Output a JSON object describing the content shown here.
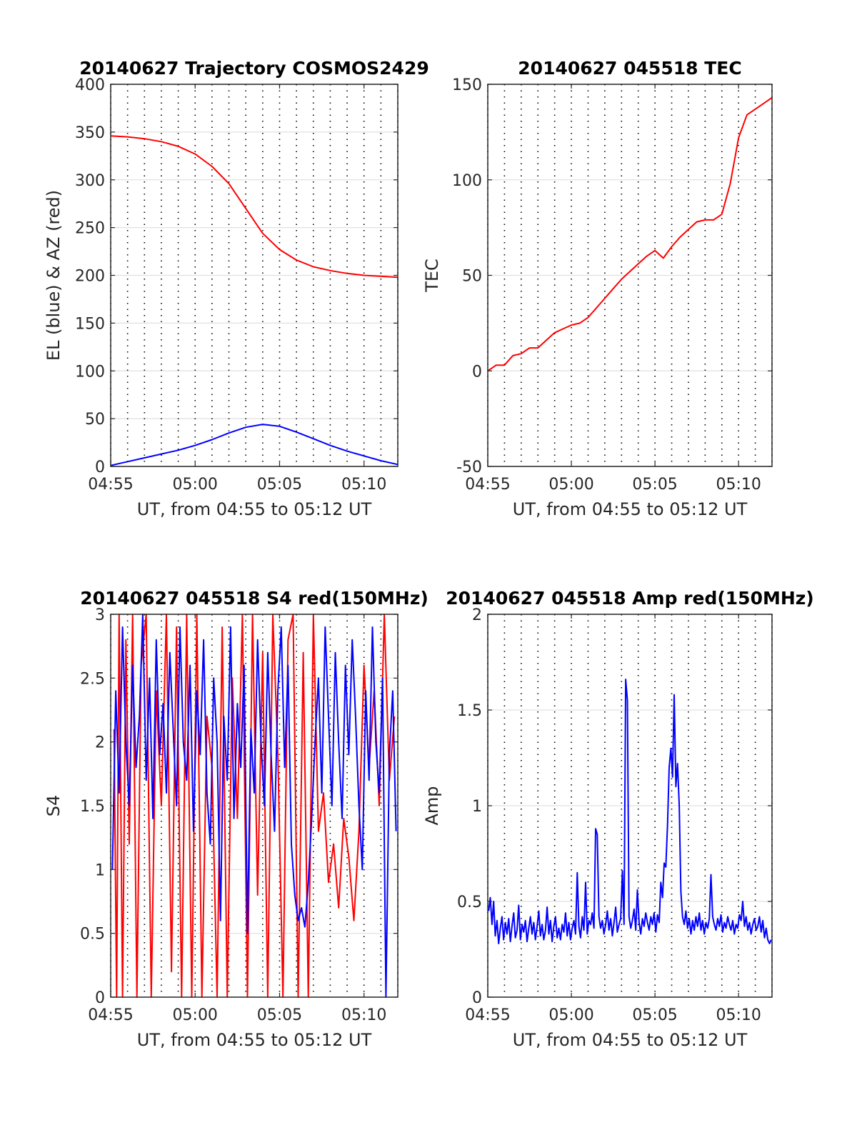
{
  "chart_data": [
    {
      "id": "trajectory",
      "type": "line",
      "title": "20140627 Trajectory COSMOS2429",
      "xlabel": "UT, from 04:55 to 05:12 UT",
      "ylabel": "EL (blue) & AZ (red)",
      "xlim": [
        0,
        17
      ],
      "ylim": [
        0,
        400
      ],
      "xticks": [
        0,
        5,
        10,
        15
      ],
      "xtick_labels": [
        "04:55",
        "05:00",
        "05:05",
        "05:10"
      ],
      "yticks": [
        0,
        50,
        100,
        150,
        200,
        250,
        300,
        350,
        400
      ],
      "grid": true,
      "series": [
        {
          "color": "#ff0000",
          "x": [
            0,
            1,
            2,
            3,
            4,
            5,
            6,
            7,
            8,
            9,
            10,
            11,
            12,
            13,
            14,
            15,
            16,
            17
          ],
          "values": [
            346,
            345,
            343,
            340,
            335,
            327,
            314,
            296,
            270,
            244,
            227,
            216,
            209,
            205,
            202,
            200,
            199,
            198
          ]
        },
        {
          "color": "#0000ff",
          "x": [
            0,
            1,
            2,
            3,
            4,
            5,
            6,
            7,
            8,
            9,
            10,
            11,
            12,
            13,
            14,
            15,
            16,
            17
          ],
          "values": [
            1,
            5,
            9,
            13,
            17,
            22,
            28,
            35,
            41,
            44,
            42,
            36,
            29,
            22,
            16,
            11,
            6,
            2
          ]
        }
      ]
    },
    {
      "id": "tec",
      "type": "line",
      "title": "20140627 045518 TEC",
      "xlabel": "UT, from 04:55 to 05:12 UT",
      "ylabel": "TEC",
      "xlim": [
        0,
        17
      ],
      "ylim": [
        -50,
        150
      ],
      "xticks": [
        0,
        5,
        10,
        15
      ],
      "xtick_labels": [
        "04:55",
        "05:00",
        "05:05",
        "05:10"
      ],
      "yticks": [
        -50,
        0,
        50,
        100,
        150
      ],
      "grid": true,
      "series": [
        {
          "color": "#ff0000",
          "x": [
            0,
            0.5,
            1,
            1.5,
            2,
            2.5,
            3,
            3.5,
            4,
            4.5,
            5,
            5.5,
            6,
            6.5,
            7,
            7.5,
            8,
            8.5,
            9,
            9.5,
            10,
            10.5,
            11,
            11.5,
            12,
            12.5,
            13,
            13.5,
            14,
            14.5,
            15,
            15.5,
            16,
            16.5,
            17
          ],
          "values": [
            0,
            3,
            3,
            8,
            9,
            12,
            12,
            16,
            20,
            22,
            24,
            25,
            28,
            33,
            38,
            43,
            48,
            52,
            56,
            60,
            63,
            59,
            65,
            70,
            74,
            78,
            79,
            79,
            82,
            98,
            122,
            134,
            137,
            140,
            143
          ]
        }
      ]
    },
    {
      "id": "s4",
      "type": "line",
      "title": "20140627 045518 S4 red(150MHz)",
      "xlabel": "UT, from 04:55 to 05:12 UT",
      "ylabel": "S4",
      "xlim": [
        0,
        17
      ],
      "ylim": [
        0,
        3
      ],
      "xticks": [
        0,
        5,
        10,
        15
      ],
      "xtick_labels": [
        "04:55",
        "05:00",
        "05:05",
        "05:10"
      ],
      "yticks": [
        0,
        0.5,
        1,
        1.5,
        2,
        2.5,
        3
      ],
      "grid": true,
      "series": [
        {
          "color": "#ff0000",
          "x": [
            0.2,
            0.35,
            0.5,
            0.7,
            0.9,
            1.1,
            1.3,
            1.55,
            1.8,
            2.1,
            2.4,
            2.7,
            3.0,
            3.3,
            3.6,
            3.9,
            4.2,
            4.5,
            4.8,
            5.1,
            5.4,
            5.7,
            6.0,
            6.3,
            6.6,
            6.9,
            7.2,
            7.5,
            7.8,
            8.1,
            8.4,
            8.7,
            9.0,
            9.3,
            9.6,
            9.9,
            10.2,
            10.5,
            10.8,
            11.1,
            11.4,
            11.7,
            12.0,
            12.3,
            12.6,
            12.9,
            13.2,
            13.5,
            13.8,
            14.1,
            14.4,
            14.7,
            15.0,
            15.3,
            15.6,
            15.9,
            16.2,
            16.5,
            16.8
          ],
          "values": [
            2.1,
            0,
            3,
            0,
            2.8,
            1.2,
            3,
            0,
            2.6,
            3,
            0,
            2.4,
            1.5,
            3,
            0.2,
            2.9,
            0,
            3,
            0,
            3,
            0,
            2.2,
            1.8,
            0,
            2.9,
            0,
            2.5,
            1.4,
            3,
            0,
            3,
            0.8,
            2.7,
            0,
            3,
            1.9,
            0,
            2.8,
            3,
            0,
            2.7,
            0,
            3,
            1.3,
            1.6,
            0.9,
            1.2,
            0.7,
            1.4,
            1.1,
            0.6,
            1.3,
            2.6,
            1.8,
            2.4,
            1.5,
            3,
            1.7,
            2.2
          ]
        },
        {
          "color": "#0000ff",
          "x": [
            0.1,
            0.3,
            0.5,
            0.7,
            0.9,
            1.1,
            1.3,
            1.5,
            1.7,
            1.9,
            2.1,
            2.3,
            2.5,
            2.7,
            2.9,
            3.1,
            3.3,
            3.5,
            3.7,
            3.9,
            4.1,
            4.3,
            4.5,
            4.7,
            4.9,
            5.1,
            5.3,
            5.5,
            5.7,
            5.9,
            6.1,
            6.3,
            6.5,
            6.7,
            6.9,
            7.1,
            7.3,
            7.5,
            7.7,
            7.9,
            8.1,
            8.3,
            8.5,
            8.7,
            8.9,
            9.1,
            9.3,
            9.5,
            9.7,
            9.9,
            10.1,
            10.3,
            10.5,
            10.7,
            10.9,
            11.1,
            11.3,
            11.5,
            11.7,
            11.9,
            12.1,
            12.3,
            12.5,
            12.7,
            12.9,
            13.1,
            13.3,
            13.5,
            13.7,
            13.9,
            14.1,
            14.3,
            14.5,
            14.7,
            14.9,
            15.1,
            15.3,
            15.5,
            15.7,
            15.9,
            16.1,
            16.3,
            16.5,
            16.7,
            16.9
          ],
          "values": [
            1.0,
            2.4,
            1.6,
            2.9,
            2.0,
            1.5,
            2.6,
            1.8,
            2.2,
            3.0,
            1.7,
            2.5,
            1.4,
            2.8,
            1.9,
            2.3,
            1.6,
            2.7,
            2.1,
            1.5,
            2.9,
            2.0,
            1.7,
            2.6,
            1.3,
            2.4,
            1.9,
            2.8,
            1.6,
            1.2,
            2.5,
            2.0,
            0.6,
            2.2,
            1.7,
            2.9,
            1.4,
            2.3,
            1.8,
            2.6,
            0.5,
            2.1,
            1.6,
            2.8,
            2.0,
            1.5,
            2.7,
            1.9,
            1.3,
            2.4,
            2.9,
            1.8,
            2.6,
            1.2,
            0.8,
            0.6,
            0.7,
            0.55,
            0.9,
            1.4,
            2.0,
            2.5,
            1.6,
            2.9,
            2.2,
            1.5,
            2.7,
            2.0,
            1.4,
            2.6,
            1.9,
            2.8,
            2.2,
            1.5,
            1.0,
            2.4,
            1.7,
            2.9,
            2.0,
            1.6,
            2.5,
            0.0,
            1.9,
            2.4,
            1.3
          ]
        }
      ]
    },
    {
      "id": "amp",
      "type": "line",
      "title": "20140627 045518 Amp red(150MHz)",
      "xlabel": "UT, from 04:55 to 05:12 UT",
      "ylabel": "Amp",
      "xlim": [
        0,
        17
      ],
      "ylim": [
        0,
        2
      ],
      "xticks": [
        0,
        5,
        10,
        15
      ],
      "xtick_labels": [
        "04:55",
        "05:00",
        "05:05",
        "05:10"
      ],
      "yticks": [
        0,
        0.5,
        1,
        1.5,
        2
      ],
      "grid": true,
      "series": [
        {
          "color": "#0000ff",
          "x": [
            0.05,
            0.15,
            0.25,
            0.35,
            0.45,
            0.55,
            0.65,
            0.75,
            0.85,
            0.95,
            1.05,
            1.15,
            1.25,
            1.35,
            1.45,
            1.55,
            1.65,
            1.75,
            1.85,
            1.95,
            2.05,
            2.15,
            2.25,
            2.35,
            2.45,
            2.55,
            2.65,
            2.75,
            2.85,
            2.95,
            3.05,
            3.15,
            3.25,
            3.35,
            3.45,
            3.55,
            3.65,
            3.75,
            3.85,
            3.95,
            4.05,
            4.15,
            4.25,
            4.35,
            4.45,
            4.55,
            4.65,
            4.75,
            4.85,
            4.95,
            5.05,
            5.15,
            5.25,
            5.35,
            5.45,
            5.55,
            5.65,
            5.75,
            5.85,
            5.95,
            6.05,
            6.15,
            6.25,
            6.35,
            6.45,
            6.55,
            6.65,
            6.75,
            6.85,
            6.95,
            7.05,
            7.15,
            7.25,
            7.35,
            7.45,
            7.55,
            7.65,
            7.75,
            7.85,
            7.95,
            8.05,
            8.15,
            8.25,
            8.35,
            8.45,
            8.55,
            8.65,
            8.75,
            8.85,
            8.95,
            9.05,
            9.15,
            9.25,
            9.35,
            9.45,
            9.55,
            9.65,
            9.75,
            9.85,
            9.95,
            10.05,
            10.15,
            10.25,
            10.35,
            10.45,
            10.55,
            10.65,
            10.75,
            10.85,
            10.95,
            11.05,
            11.15,
            11.25,
            11.35,
            11.45,
            11.55,
            11.65,
            11.75,
            11.85,
            11.95,
            12.05,
            12.15,
            12.25,
            12.35,
            12.45,
            12.55,
            12.65,
            12.75,
            12.85,
            12.95,
            13.05,
            13.15,
            13.25,
            13.35,
            13.45,
            13.55,
            13.65,
            13.75,
            13.85,
            13.95,
            14.05,
            14.15,
            14.25,
            14.35,
            14.45,
            14.55,
            14.65,
            14.75,
            14.85,
            14.95,
            15.05,
            15.15,
            15.25,
            15.35,
            15.45,
            15.55,
            15.65,
            15.75,
            15.85,
            15.95,
            16.05,
            16.15,
            16.25,
            16.35,
            16.45,
            16.55,
            16.65,
            16.75,
            16.85,
            16.95
          ],
          "values": [
            0.45,
            0.52,
            0.38,
            0.5,
            0.32,
            0.4,
            0.28,
            0.36,
            0.42,
            0.3,
            0.39,
            0.33,
            0.41,
            0.29,
            0.37,
            0.44,
            0.31,
            0.35,
            0.48,
            0.3,
            0.38,
            0.34,
            0.4,
            0.29,
            0.36,
            0.42,
            0.33,
            0.39,
            0.3,
            0.37,
            0.45,
            0.32,
            0.38,
            0.3,
            0.35,
            0.47,
            0.33,
            0.4,
            0.29,
            0.37,
            0.42,
            0.31,
            0.36,
            0.3,
            0.38,
            0.34,
            0.44,
            0.32,
            0.39,
            0.3,
            0.36,
            0.4,
            0.33,
            0.65,
            0.37,
            0.31,
            0.42,
            0.35,
            0.6,
            0.33,
            0.4,
            0.38,
            0.44,
            0.36,
            0.88,
            0.85,
            0.42,
            0.36,
            0.4,
            0.33,
            0.38,
            0.45,
            0.35,
            0.41,
            0.32,
            0.39,
            0.47,
            0.34,
            0.38,
            0.41,
            0.66,
            0.38,
            1.66,
            1.55,
            0.42,
            0.36,
            0.4,
            0.46,
            0.35,
            0.56,
            0.39,
            0.33,
            0.41,
            0.37,
            0.44,
            0.39,
            0.35,
            0.42,
            0.38,
            0.44,
            0.34,
            0.43,
            0.39,
            0.6,
            0.52,
            0.7,
            0.68,
            0.9,
            1.2,
            1.3,
            1.15,
            1.58,
            1.1,
            1.22,
            1.0,
            0.55,
            0.42,
            0.38,
            0.45,
            0.36,
            0.41,
            0.33,
            0.4,
            0.35,
            0.42,
            0.37,
            0.44,
            0.35,
            0.4,
            0.33,
            0.39,
            0.36,
            0.41,
            0.64,
            0.42,
            0.38,
            0.35,
            0.41,
            0.37,
            0.43,
            0.34,
            0.39,
            0.36,
            0.42,
            0.38,
            0.35,
            0.4,
            0.33,
            0.38,
            0.36,
            0.43,
            0.4,
            0.5,
            0.37,
            0.42,
            0.35,
            0.39,
            0.33,
            0.38,
            0.41,
            0.35,
            0.37,
            0.42,
            0.34,
            0.4,
            0.31,
            0.36,
            0.3,
            0.28,
            0.3
          ]
        }
      ]
    }
  ]
}
